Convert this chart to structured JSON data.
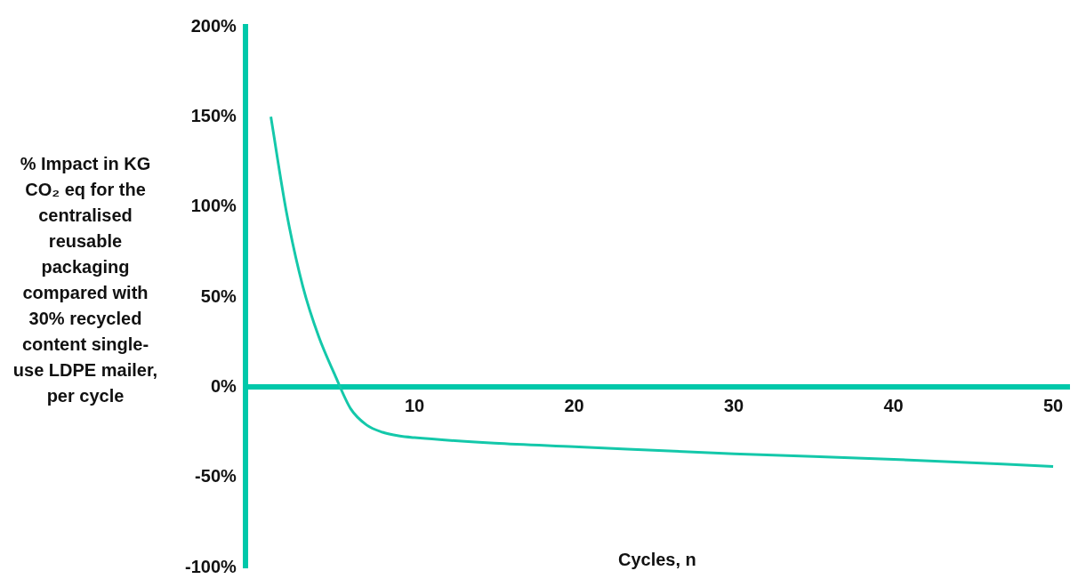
{
  "chart_data": {
    "type": "line",
    "ylabel": "% Impact in KG CO₂ eq for the centralised reusable packaging compared with 30% recycled content single-use LDPE mailer, per cycle",
    "xlabel": "Cycles, n",
    "series": [
      {
        "color": "#14c8aa",
        "x": [
          1,
          2,
          3,
          4,
          5,
          6,
          7,
          8,
          9,
          10,
          15,
          20,
          30,
          40,
          50
        ],
        "values": [
          150,
          96,
          56,
          28,
          7,
          -12,
          -21,
          -25,
          -27,
          -28,
          -31,
          -33,
          -37,
          -40,
          -44
        ]
      }
    ],
    "xlim": [
      -0.6,
      51
    ],
    "xticks": [
      10,
      20,
      30,
      40,
      50
    ],
    "ylim": [
      -100,
      200
    ],
    "yticks": [
      {
        "value": -100,
        "label": "-100%"
      },
      {
        "value": -50,
        "label": "-50%"
      },
      {
        "value": 0,
        "label": "0%"
      },
      {
        "value": 50,
        "label": "50%"
      },
      {
        "value": 100,
        "label": "100%"
      },
      {
        "value": 150,
        "label": "150%"
      },
      {
        "value": 200,
        "label": "200%"
      }
    ],
    "grid": false,
    "legend": false,
    "marker": "none",
    "line_style": "solid"
  }
}
